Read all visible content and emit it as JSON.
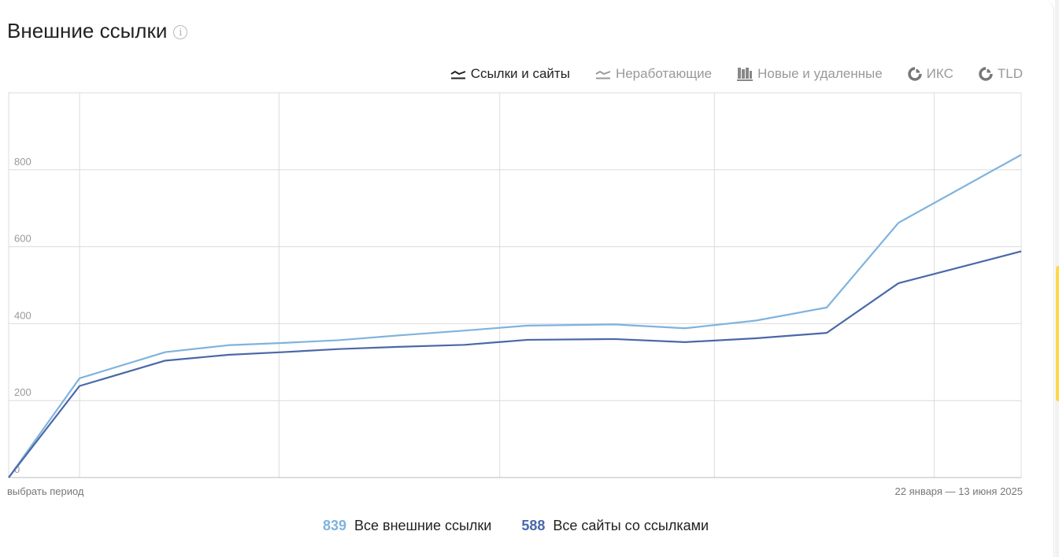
{
  "header": {
    "title": "Внешние ссылки",
    "info_icon": "info-icon"
  },
  "tabs": [
    {
      "label": "Ссылки и сайты",
      "icon": "line-chart-icon",
      "active": true
    },
    {
      "label": "Неработающие",
      "icon": "line-chart-icon",
      "active": false
    },
    {
      "label": "Новые и удаленные",
      "icon": "bar-chart-icon",
      "active": false
    },
    {
      "label": "ИКС",
      "icon": "pie-chart-icon",
      "active": false
    },
    {
      "label": "TLD",
      "icon": "pie-chart-icon",
      "active": false
    }
  ],
  "footer": {
    "period_link": "выбрать период",
    "date_range": "22 января — 13 июня 2025"
  },
  "legend": [
    {
      "value": "839",
      "label": "Все внешние ссылки",
      "color": "#7fb3de"
    },
    {
      "value": "588",
      "label": "Все сайты со ссылками",
      "color": "#4a68a8"
    }
  ],
  "colors": {
    "series_links": "#7fb3de",
    "series_sites": "#4a68a8",
    "grid": "#dcdcdc",
    "axis": "#bbbbbb"
  },
  "chart_data": {
    "type": "line",
    "ylim": [
      0,
      1000
    ],
    "yticks": [
      0,
      200,
      400,
      600,
      800
    ],
    "grid": true,
    "x": [
      0,
      1,
      2,
      3,
      4,
      5,
      6,
      7,
      8,
      9,
      10,
      11,
      12,
      13,
      14
    ],
    "series": [
      {
        "name": "Все внешние ссылки",
        "color": "#7fb3de",
        "values": [
          0,
          258,
          326,
          344,
          350,
          357,
          370,
          382,
          395,
          398,
          388,
          408,
          442,
          662,
          839
        ]
      },
      {
        "name": "Все сайты со ссылками",
        "color": "#4a68a8",
        "values": [
          0,
          238,
          304,
          319,
          326,
          334,
          340,
          345,
          358,
          360,
          352,
          362,
          376,
          505,
          588
        ]
      }
    ]
  }
}
